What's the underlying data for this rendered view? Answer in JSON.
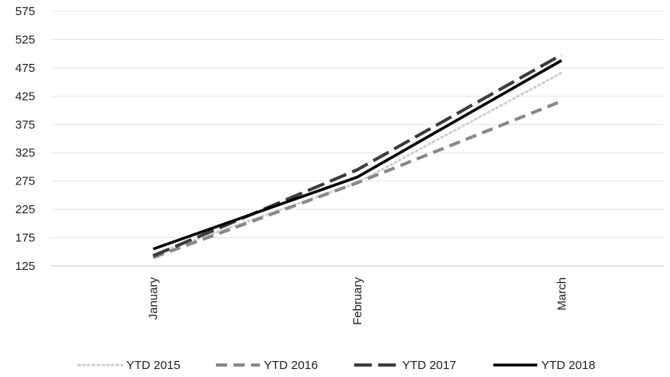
{
  "chart_data": {
    "type": "line",
    "categories": [
      "January",
      "February",
      "March"
    ],
    "ylim": [
      125,
      575
    ],
    "yticks": [
      125,
      175,
      225,
      275,
      325,
      375,
      425,
      475,
      525,
      575
    ],
    "grid": true,
    "legend_position": "bottom",
    "series": [
      {
        "name": "YTD 2015",
        "values": [
          145,
          272,
          466
        ],
        "color": "#d0d0d0",
        "style": "dotted"
      },
      {
        "name": "YTD 2016",
        "values": [
          140,
          272,
          416
        ],
        "color": "#888888",
        "style": "dashed"
      },
      {
        "name": "YTD 2017",
        "values": [
          143,
          295,
          498
        ],
        "color": "#3c3c3c",
        "style": "longdash"
      },
      {
        "name": "YTD 2018",
        "values": [
          155,
          282,
          488
        ],
        "color": "#000000",
        "style": "solid"
      }
    ]
  }
}
